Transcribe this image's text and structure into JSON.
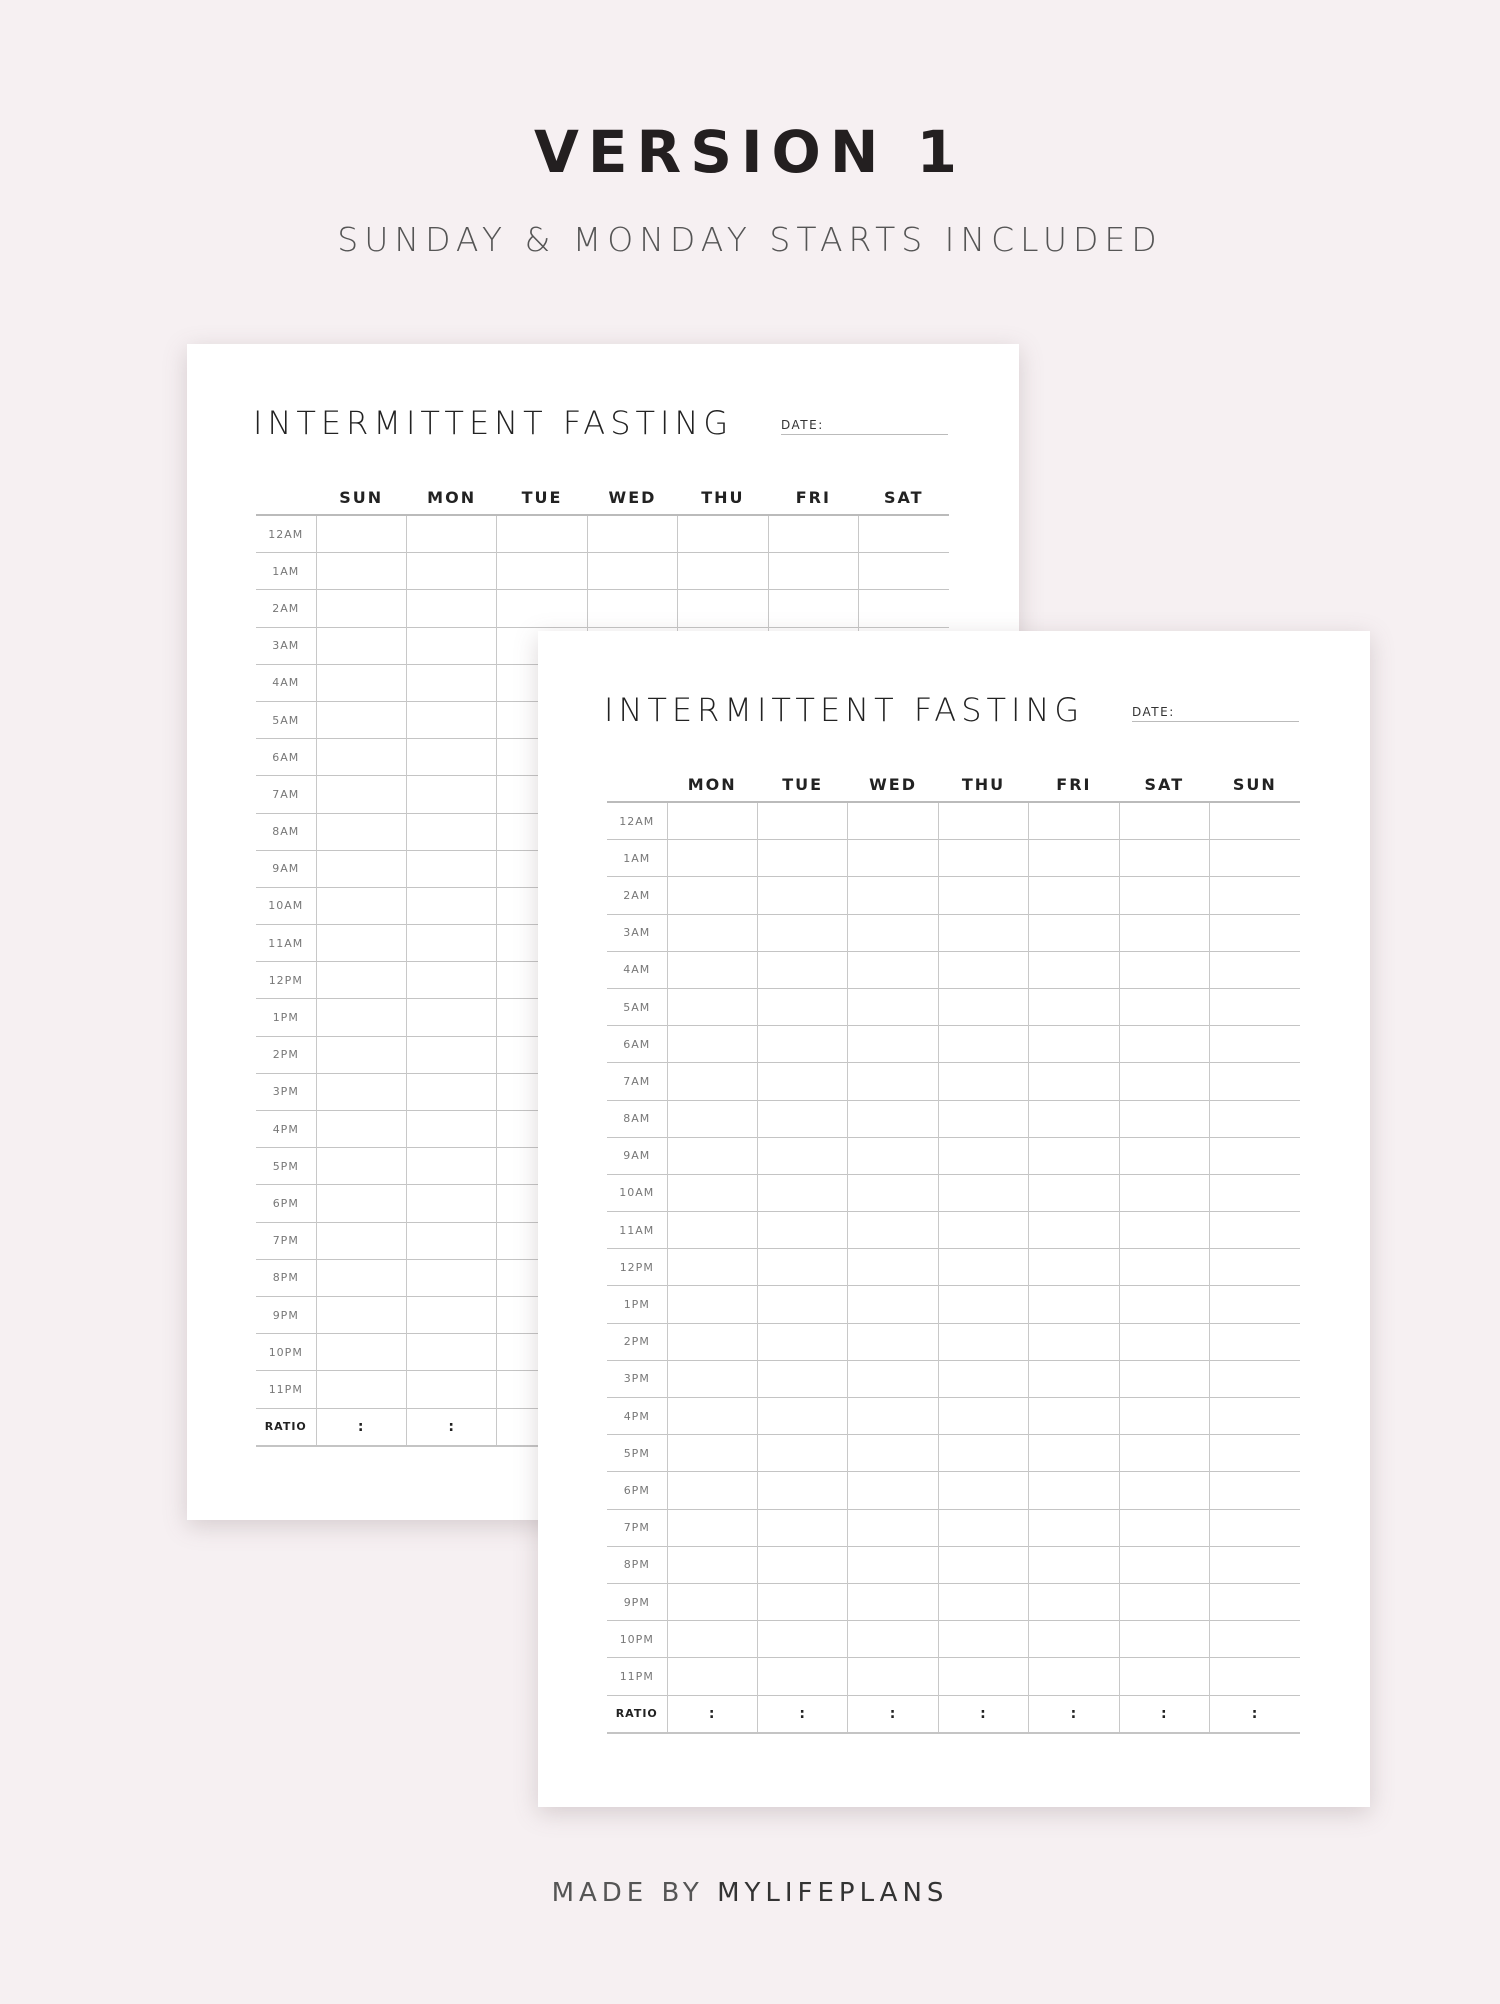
{
  "header": {
    "title": "VERSION 1",
    "subtitle": "SUNDAY & MONDAY STARTS INCLUDED"
  },
  "footer": {
    "prefix": "MADE BY",
    "brand": "MYLIFEPLANS"
  },
  "colors": {
    "background": "#f6f0f2",
    "page": "#ffffff",
    "text": "#231f20",
    "grid_line": "#c4c4c4"
  },
  "hours": [
    "12AM",
    "1AM",
    "2AM",
    "3AM",
    "4AM",
    "5AM",
    "6AM",
    "7AM",
    "8AM",
    "9AM",
    "10AM",
    "11AM",
    "12PM",
    "1PM",
    "2PM",
    "3PM",
    "4PM",
    "5PM",
    "6PM",
    "7PM",
    "8PM",
    "9PM",
    "10PM",
    "11PM"
  ],
  "ratio_label": "RATIO",
  "ratio_mark": ":",
  "pages": [
    {
      "title": "INTERMITTENT FASTING",
      "date_label": "DATE:",
      "days": [
        "SUN",
        "MON",
        "TUE",
        "WED",
        "THU",
        "FRI",
        "SAT"
      ]
    },
    {
      "title": "INTERMITTENT FASTING",
      "date_label": "DATE:",
      "days": [
        "MON",
        "TUE",
        "WED",
        "THU",
        "FRI",
        "SAT",
        "SUN"
      ]
    }
  ]
}
